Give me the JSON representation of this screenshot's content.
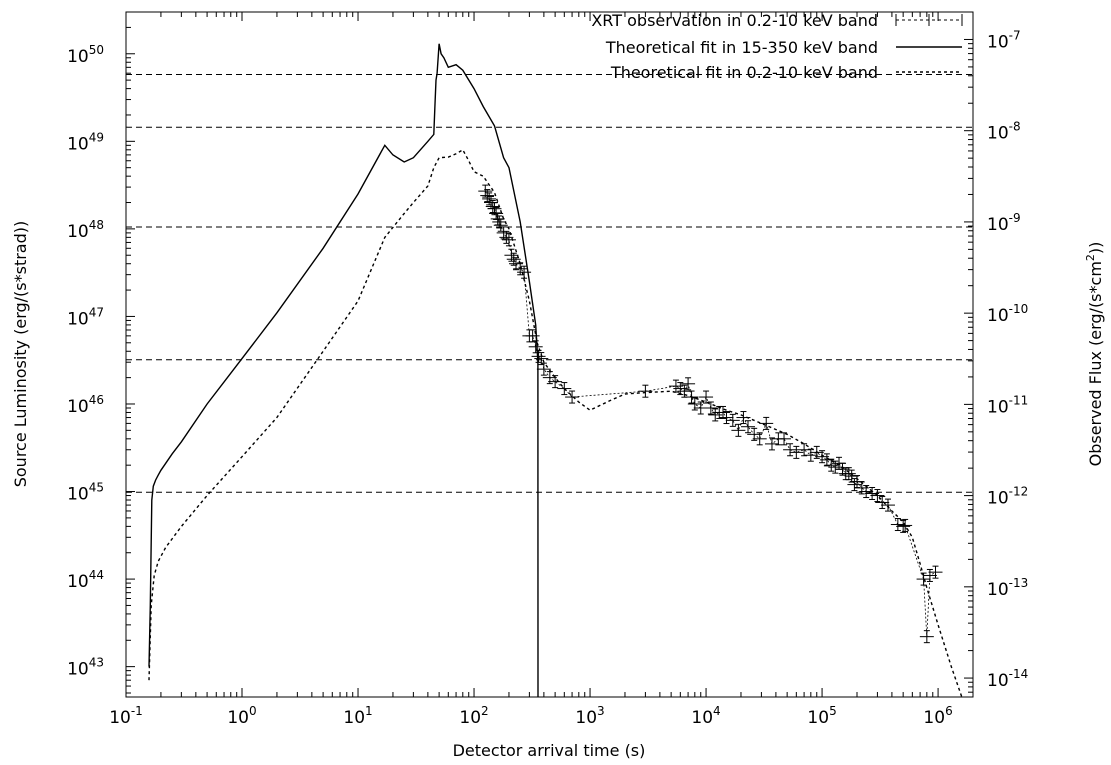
{
  "chart_data": {
    "type": "line",
    "xlabel": "Detector arrival time (s)",
    "ylabel_left": "Source Luminosity (erg/(s*strad))",
    "ylabel_right_base": "Observed Flux (erg/(s*cm",
    "ylabel_right_sup": "2",
    "ylabel_right_end": "))",
    "x_scale": "log",
    "y_scale": "log",
    "xlim": [
      0.1,
      2000000
    ],
    "ylim_left": [
      4.5e+42,
      3e+50
    ],
    "ylim_right": [
      6.2e-15,
      2e-07
    ],
    "x_ticks": [
      {
        "value": 0.1,
        "mant": "10",
        "exp": "-1"
      },
      {
        "value": 1,
        "mant": "10",
        "exp": "0"
      },
      {
        "value": 10,
        "mant": "10",
        "exp": "1"
      },
      {
        "value": 100,
        "mant": "10",
        "exp": "2"
      },
      {
        "value": 1000,
        "mant": "10",
        "exp": "3"
      },
      {
        "value": 10000,
        "mant": "10",
        "exp": "4"
      },
      {
        "value": 100000,
        "mant": "10",
        "exp": "5"
      },
      {
        "value": 1000000,
        "mant": "10",
        "exp": "6"
      }
    ],
    "y_ticks_left": [
      {
        "value": 1e+43,
        "mant": "10",
        "exp": "43"
      },
      {
        "value": 1e+44,
        "mant": "10",
        "exp": "44"
      },
      {
        "value": 1e+45,
        "mant": "10",
        "exp": "45"
      },
      {
        "value": 1e+46,
        "mant": "10",
        "exp": "46"
      },
      {
        "value": 1e+47,
        "mant": "10",
        "exp": "47"
      },
      {
        "value": 1e+48,
        "mant": "10",
        "exp": "48"
      },
      {
        "value": 1e+49,
        "mant": "10",
        "exp": "49"
      },
      {
        "value": 1e+50,
        "mant": "10",
        "exp": "50"
      }
    ],
    "y_ticks_right": [
      {
        "value": 1e-14,
        "mant": "10",
        "exp": "-14"
      },
      {
        "value": 1e-13,
        "mant": "10",
        "exp": "-13"
      },
      {
        "value": 1e-12,
        "mant": "10",
        "exp": "-12"
      },
      {
        "value": 1e-11,
        "mant": "10",
        "exp": "-11"
      },
      {
        "value": 1e-10,
        "mant": "10",
        "exp": "-10"
      },
      {
        "value": 1e-09,
        "mant": "10",
        "exp": "-9"
      },
      {
        "value": 1e-08,
        "mant": "10",
        "exp": "-8"
      },
      {
        "value": 1e-07,
        "mant": "10",
        "exp": "-7"
      }
    ],
    "reference_lines_left": [
      5.8e+49,
      1.45e+49,
      1.05e+48,
      3.2e+46,
      9.8e+44
    ],
    "legend": [
      {
        "label": "XRT observation in 0.2-10 keV band",
        "style": "errorbar"
      },
      {
        "label": "Theoretical fit in 15-350 keV band",
        "style": "solid"
      },
      {
        "label": "Theoretical fit in 0.2-10 keV band",
        "style": "dotted"
      }
    ],
    "legend_position": "top-right",
    "grid": false,
    "series": [
      {
        "name": "Theoretical fit in 15-350 keV band",
        "style": "solid",
        "x": [
          0.158,
          0.162,
          0.167,
          0.172,
          0.18,
          0.19,
          0.2,
          0.22,
          0.25,
          0.3,
          0.5,
          1,
          2,
          5,
          10,
          17,
          20,
          25,
          30,
          40,
          45,
          46,
          47,
          48,
          50,
          52,
          55,
          60,
          70,
          80,
          100,
          120,
          150,
          180,
          200,
          250,
          300,
          340,
          355,
          356
        ],
        "y": [
          1e+43,
          5e+43,
          8e+44,
          1.15e+45,
          1.35e+45,
          1.55e+45,
          1.75e+45,
          2.1e+45,
          2.7e+45,
          3.7e+45,
          1e+46,
          3.3e+46,
          1.1e+47,
          6e+47,
          2.5e+48,
          9e+48,
          7e+48,
          5.8e+48,
          6.5e+48,
          1e+49,
          1.2e+49,
          2.5e+49,
          5e+49,
          6e+49,
          1.3e+50,
          1e+50,
          9e+49,
          7e+49,
          7.5e+49,
          6.5e+49,
          4e+49,
          2.5e+49,
          1.5e+49,
          6.5e+48,
          5e+48,
          1.2e+48,
          2.5e+47,
          8e+46,
          3e+46,
          4.5e+42
        ]
      },
      {
        "name": "Theoretical fit in 0.2-10 keV band",
        "style": "dotted",
        "x": [
          0.158,
          0.165,
          0.175,
          0.19,
          0.22,
          0.3,
          0.5,
          1,
          2,
          5,
          10,
          17,
          25,
          30,
          40,
          45,
          50,
          60,
          70,
          80,
          90,
          100,
          120,
          150,
          180,
          200,
          250,
          300,
          350,
          400,
          500,
          600,
          800,
          1000,
          1500,
          2000,
          3000,
          5000,
          7000,
          10000,
          15000,
          20000,
          30000,
          50000,
          70000,
          100000,
          150000,
          200000,
          300000,
          400000,
          500000,
          600000,
          700000,
          800000,
          1000000,
          1300000,
          1600000
        ],
        "y": [
          7e+42,
          5e+43,
          1.1e+44,
          1.6e+44,
          2.3e+44,
          4e+44,
          9e+44,
          2.5e+45,
          7e+45,
          4e+46,
          1.5e+47,
          8e+47,
          1.5e+48,
          2e+48,
          3.1e+48,
          5e+48,
          6.5e+48,
          6.6e+48,
          7.2e+48,
          8e+48,
          6e+48,
          4.5e+48,
          4e+48,
          2.6e+48,
          1.3e+48,
          1e+48,
          4e+47,
          1.5e+47,
          5e+46,
          3e+46,
          2e+46,
          1.5e+46,
          1.05e+46,
          8.5e+45,
          1.1e+46,
          1.3e+46,
          1.35e+46,
          1.4e+46,
          1.25e+46,
          1.05e+46,
          8.5e+45,
          7.5e+45,
          6e+45,
          4.5e+45,
          3.5e+45,
          2.6e+45,
          1.9e+45,
          1.4e+45,
          9e+44,
          6e+44,
          4.5e+44,
          3e+44,
          1.5e+44,
          8e+43,
          3e+43,
          1e+43,
          4.5e+42
        ]
      },
      {
        "name": "XRT observation in 0.2-10 keV band",
        "style": "errorbar",
        "x": [
          125,
          130,
          135,
          140,
          145,
          150,
          155,
          160,
          165,
          170,
          180,
          190,
          200,
          210,
          220,
          230,
          250,
          270,
          300,
          320,
          340,
          360,
          380,
          400,
          450,
          500,
          600,
          700,
          3000,
          5500,
          6000,
          6500,
          7000,
          7500,
          8000,
          9000,
          10000,
          11000,
          12000,
          13000,
          14000,
          15000,
          17000,
          19000,
          21000,
          23000,
          26000,
          29000,
          33000,
          37000,
          42000,
          47000,
          53000,
          60000,
          70000,
          80000,
          90000,
          100000,
          110000,
          120000,
          130000,
          140000,
          150000,
          160000,
          170000,
          180000,
          190000,
          200000,
          220000,
          240000,
          270000,
          300000,
          330000,
          370000,
          450000,
          500000,
          520000,
          750000,
          800000,
          850000,
          950000
        ],
        "y": [
          2.7e+48,
          2.4e+48,
          2.2e+48,
          2e+48,
          1.8e+48,
          1.7e+48,
          1.5e+48,
          1.3e+48,
          1.2e+48,
          1.1e+48,
          9e+47,
          8e+47,
          7.5e+47,
          5e+47,
          4.5e+47,
          4e+47,
          3.5e+47,
          3.2e+47,
          6e+46,
          6e+46,
          4.5e+46,
          3.5e+46,
          3.3e+46,
          2.5e+46,
          2e+46,
          1.8e+46,
          1.5e+46,
          1.2e+46,
          1.4e+46,
          1.6e+46,
          1.5e+46,
          1.4e+46,
          1.7e+46,
          1.2e+46,
          1e+46,
          9e+45,
          1.2e+46,
          9e+45,
          7.5e+45,
          8e+45,
          8e+45,
          7e+45,
          6.5e+45,
          5e+45,
          7e+45,
          5.5e+45,
          4.5e+45,
          4e+45,
          6e+45,
          3.5e+45,
          4e+45,
          4e+45,
          3e+45,
          2.8e+45,
          3e+45,
          2.6e+45,
          2.8e+45,
          2.5e+45,
          2.3e+45,
          2e+45,
          1.9e+45,
          2.1e+45,
          1.8e+45,
          1.6e+45,
          1.6e+45,
          1.5e+45,
          1.2e+45,
          1.3e+45,
          1.1e+45,
          1e+45,
          9.5e+44,
          9e+44,
          7.5e+44,
          7e+44,
          4.2e+44,
          4e+44,
          4.1e+44,
          1e+44,
          2.2e+43,
          1.1e+44,
          1.2e+44
        ]
      }
    ]
  }
}
